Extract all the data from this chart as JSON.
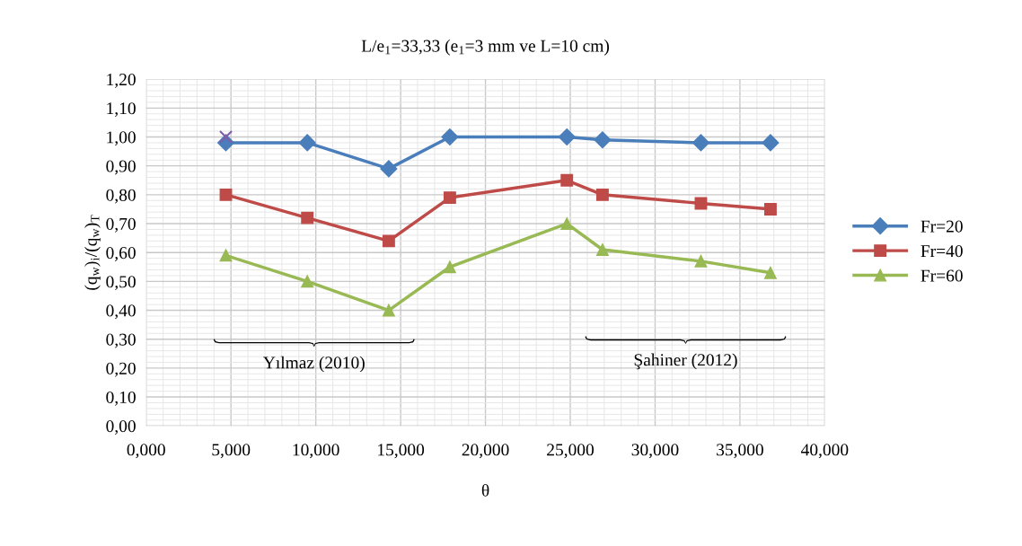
{
  "chart_data": {
    "type": "line",
    "title": "L/e$_{1}$=33,33 (e$_{1}$=3 mm ve L=10 cm)",
    "xlabel": "θ",
    "ylabel": "(q$_{w}$)$_{i}$/(q$_{w}$)$_{T}$",
    "x": [
      4.7,
      9.5,
      14.3,
      17.9,
      24.8,
      26.9,
      32.7,
      36.8
    ],
    "series": [
      {
        "name": "Fr=20",
        "color": "#4a7ebb",
        "marker": "diamond",
        "values": [
          0.98,
          0.98,
          0.89,
          1.0,
          1.0,
          0.99,
          0.98,
          0.98
        ]
      },
      {
        "name": "Fr=40",
        "color": "#be4b48",
        "marker": "square",
        "values": [
          0.8,
          0.72,
          0.64,
          0.79,
          0.85,
          0.8,
          0.77,
          0.75
        ]
      },
      {
        "name": "Fr=60",
        "color": "#98b954",
        "marker": "triangle",
        "values": [
          0.59,
          0.5,
          0.4,
          0.55,
          0.7,
          0.61,
          0.57,
          0.53
        ]
      },
      {
        "type": "scatter",
        "color": "#7e5ca8",
        "marker": "cross",
        "x": [
          4.7
        ],
        "values": [
          1.0
        ]
      }
    ],
    "xlim": [
      0,
      40
    ],
    "xticks": [
      {
        "value": 0,
        "label": "0,000"
      },
      {
        "value": 5,
        "label": "5,000"
      },
      {
        "value": 10,
        "label": "10,000"
      },
      {
        "value": 15,
        "label": "15,000"
      },
      {
        "value": 20,
        "label": "20,000"
      },
      {
        "value": 25,
        "label": "25,000"
      },
      {
        "value": 30,
        "label": "30,000"
      },
      {
        "value": 35,
        "label": "35,000"
      },
      {
        "value": 40,
        "label": "40,000"
      }
    ],
    "ylim": [
      0,
      1.2
    ],
    "yticks": [
      {
        "value": 0,
        "label": "0,00"
      },
      {
        "value": 0.1,
        "label": "0,10"
      },
      {
        "value": 0.2,
        "label": "0,20"
      },
      {
        "value": 0.3,
        "label": "0,30"
      },
      {
        "value": 0.4,
        "label": "0,40"
      },
      {
        "value": 0.5,
        "label": "0,50"
      },
      {
        "value": 0.6,
        "label": "0,60"
      },
      {
        "value": 0.7,
        "label": "0,70"
      },
      {
        "value": 0.8,
        "label": "0,80"
      },
      {
        "value": 0.9,
        "label": "0,90"
      },
      {
        "value": 1.0,
        "label": "1,00"
      },
      {
        "value": 1.1,
        "label": "1,10"
      },
      {
        "value": 1.2,
        "label": "1,20"
      }
    ],
    "annotations": [
      "Yılmaz (2010)",
      "Şahiner (2012)"
    ],
    "grid": true,
    "legend": "right"
  }
}
